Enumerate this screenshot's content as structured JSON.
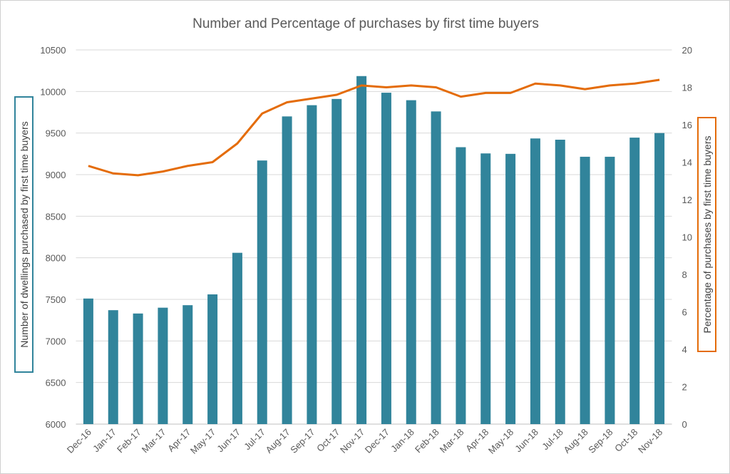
{
  "chart_data": {
    "type": "bar+line",
    "title": "Number and Percentage of purchases by first time buyers",
    "ylabel_left": "Number of dwellings purchased by first time buyers",
    "ylabel_right": "Percentage of purchases by first time buyers",
    "categories": [
      "Dec-16",
      "Jan-17",
      "Feb-17",
      "Mar-17",
      "Apr-17",
      "May-17",
      "Jun-17",
      "Jul-17",
      "Aug-17",
      "Sep-17",
      "Oct-17",
      "Nov-17",
      "Dec-17",
      "Jan-18",
      "Feb-18",
      "Mar-18",
      "Apr-18",
      "May-18",
      "Jun-18",
      "Jul-18",
      "Aug-18",
      "Sep-18",
      "Oct-18",
      "Nov-18"
    ],
    "series": [
      {
        "type": "bar",
        "axis": "left",
        "color": "#31849b",
        "values": [
          7510,
          7370,
          7330,
          7400,
          7430,
          7560,
          8060,
          9170,
          9700,
          9835,
          9910,
          10185,
          9985,
          9895,
          9760,
          9330,
          9255,
          9250,
          9435,
          9420,
          9215,
          9215,
          9445,
          9500
        ]
      },
      {
        "type": "line",
        "axis": "right",
        "color": "#e46c0a",
        "values": [
          13.8,
          13.4,
          13.3,
          13.5,
          13.8,
          14.0,
          15.0,
          16.6,
          17.2,
          17.4,
          17.6,
          18.1,
          18.0,
          18.1,
          18.0,
          17.5,
          17.7,
          17.7,
          18.2,
          18.1,
          17.9,
          18.1,
          18.2,
          18.4
        ]
      }
    ],
    "ylim_left": [
      6000,
      10500
    ],
    "yticks_left": [
      "6000",
      "6500",
      "7000",
      "7500",
      "8000",
      "8500",
      "9000",
      "9500",
      "10000",
      "10500"
    ],
    "ylim_right": [
      0,
      20
    ],
    "yticks_right": [
      "0",
      "2",
      "4",
      "6",
      "8",
      "10",
      "12",
      "14",
      "16",
      "18",
      "20"
    ],
    "grid": true,
    "legend": "none"
  }
}
